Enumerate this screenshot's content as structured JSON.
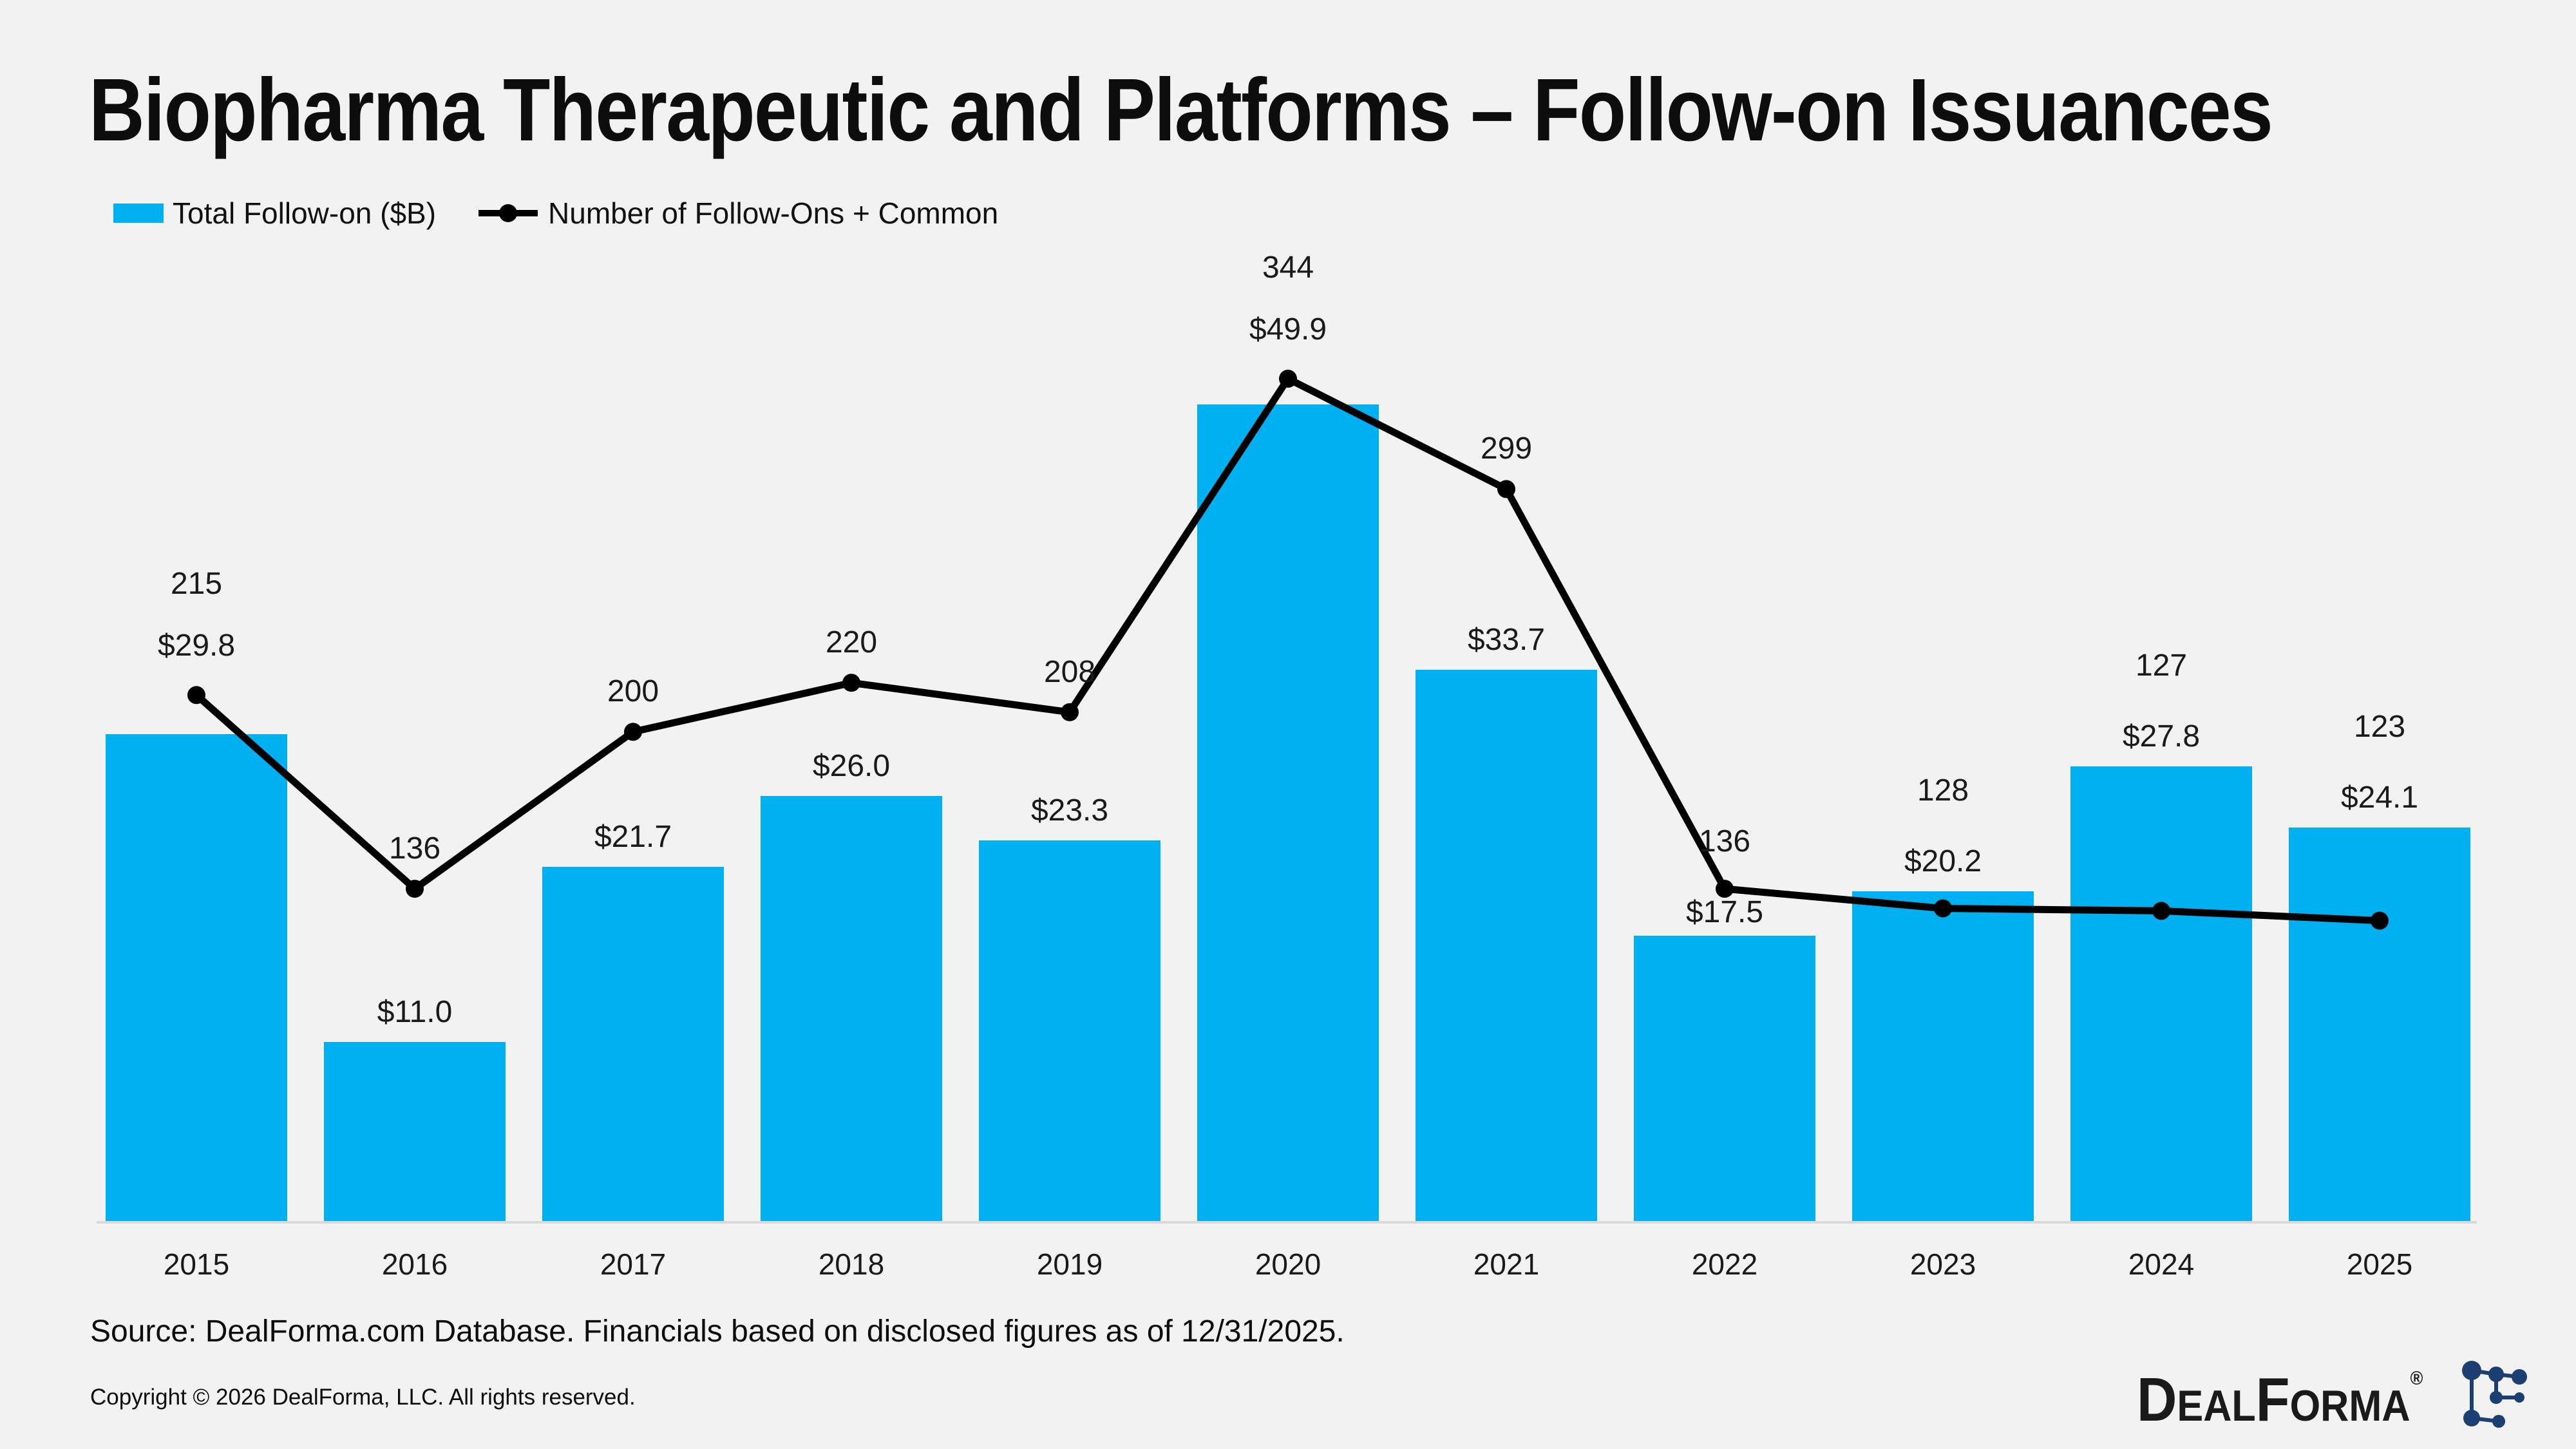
{
  "title": "Biopharma Therapeutic and Platforms – Follow-on Issuances",
  "legend": {
    "bar_label": "Total Follow-on ($B)",
    "line_label": "Number of Follow-Ons + Common"
  },
  "chart_data": {
    "type": "bar",
    "subtype": "bar-with-line-overlay",
    "categories": [
      "2015",
      "2016",
      "2017",
      "2018",
      "2019",
      "2020",
      "2021",
      "2022",
      "2023",
      "2024",
      "2025"
    ],
    "series": [
      {
        "name": "Total Follow-on ($B)",
        "type": "bar",
        "values": [
          29.8,
          11.0,
          21.7,
          26.0,
          23.3,
          49.9,
          33.7,
          17.5,
          20.2,
          27.8,
          24.1
        ],
        "labels": [
          "$29.8",
          "$11.0",
          "$21.7",
          "$26.0",
          "$23.3",
          "$49.9",
          "$33.7",
          "$17.5",
          "$20.2",
          "$27.8",
          "$24.1"
        ],
        "color": "#00b0f0"
      },
      {
        "name": "Number of Follow-Ons + Common",
        "type": "line",
        "values": [
          215,
          136,
          200,
          220,
          208,
          344,
          299,
          136,
          128,
          127,
          123
        ],
        "labels": [
          "215",
          "136",
          "200",
          "220",
          "208",
          "344",
          "299",
          "136",
          "128",
          "127",
          "123"
        ],
        "color": "#000000"
      }
    ],
    "xlabel": "",
    "ylabel": "",
    "value_axis_visible": false,
    "gridlines": false,
    "legend_position": "top-left",
    "bar_axis_range": [
      0,
      55
    ],
    "line_axis_range": [
      0,
      360
    ]
  },
  "footer": {
    "source": "Source: DealForma.com Database. Financials based on disclosed figures as of 12/31/2025.",
    "copyright": "Copyright © 2026 DealForma, LLC. All rights reserved."
  },
  "logo": {
    "part1": "D",
    "part2": "EAL",
    "part3": "F",
    "part4": "ORMA",
    "registered": "®"
  },
  "colors": {
    "background": "#f2f2f2",
    "bar": "#00b0f0",
    "line": "#000000",
    "axis_line": "#d9d9d9",
    "text": "#1a1a1a",
    "logo_navy": "#1b3e73"
  }
}
